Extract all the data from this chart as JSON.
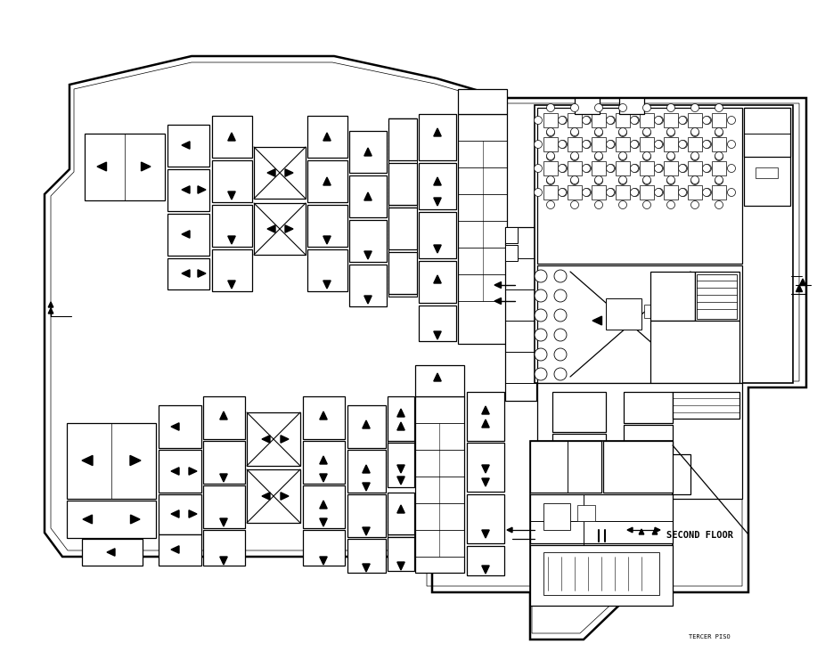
{
  "title": "SECOND FLOOR",
  "subtitle": "TERCER PISO",
  "bg_color": "#ffffff",
  "line_color": "#000000",
  "figsize": [
    9.17,
    7.41
  ],
  "dpi": 100
}
